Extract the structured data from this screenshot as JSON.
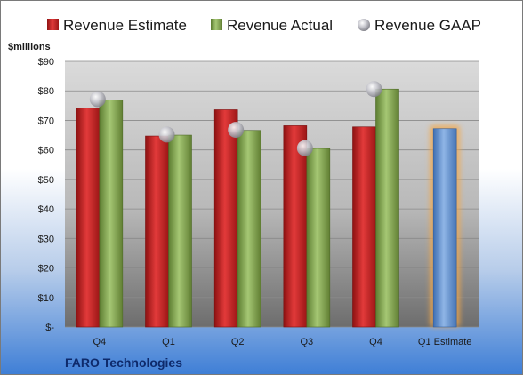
{
  "company": "FARO Technologies",
  "chart_data": {
    "type": "bar",
    "ylabel": "$millions",
    "ylim": [
      0,
      90
    ],
    "y_ticks": [
      "$-",
      "$10",
      "$20",
      "$30",
      "$40",
      "$50",
      "$60",
      "$70",
      "$80",
      "$90"
    ],
    "grid": true,
    "legend_position": "top",
    "categories": [
      "Q4",
      "Q1",
      "Q2",
      "Q3",
      "Q4",
      "Q1 Estimate"
    ],
    "series": [
      {
        "name": "Revenue Estimate",
        "type": "bar",
        "color": "#d42a2a",
        "values": [
          74.2,
          64.7,
          73.6,
          68.2,
          67.8,
          null
        ]
      },
      {
        "name": "Revenue Actual",
        "type": "bar",
        "color": "#8db35a",
        "values": [
          76.9,
          65.0,
          66.6,
          60.5,
          80.6,
          null
        ]
      },
      {
        "name": "Revenue GAAP",
        "type": "marker",
        "color": "#b8b8c0",
        "values": [
          77.2,
          65.2,
          66.8,
          60.6,
          80.6,
          null
        ]
      }
    ],
    "forecast": {
      "category": "Q1 Estimate",
      "value": 67.2,
      "color": "#6f9fd8",
      "highlight": "#f4a848"
    }
  }
}
